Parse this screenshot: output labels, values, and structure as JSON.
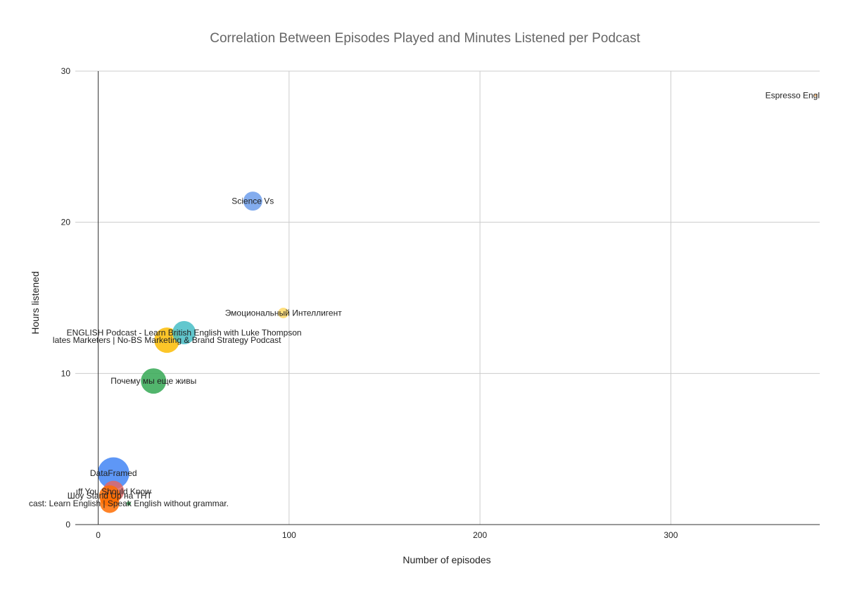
{
  "chart_data": {
    "type": "scatter",
    "title": "Correlation Between Episodes Played and Minutes Listened per Podcast",
    "xlabel": "Number of episodes",
    "ylabel": "Hours listened",
    "xlim": [
      -12,
      378
    ],
    "ylim": [
      0,
      30
    ],
    "x_ticks": [
      0,
      100,
      200,
      300
    ],
    "y_ticks": [
      0,
      10,
      20,
      30
    ],
    "x_tick_labels": [
      "0",
      "100",
      "200",
      "300"
    ],
    "y_tick_labels": [
      "0",
      "10",
      "20",
      "30"
    ],
    "grid": true,
    "legend": "none",
    "points": [
      {
        "label": "Espresso Engl",
        "x": 376,
        "y": 28.4,
        "size": 0.05,
        "color": "#f6b26b"
      },
      {
        "label": "Science Vs",
        "x": 81,
        "y": 21.4,
        "size": 0.45,
        "color": "#6d9eeb"
      },
      {
        "label": "Эмоциональный Интеллигент",
        "x": 97,
        "y": 14.0,
        "size": 0.25,
        "color": "#ffd966"
      },
      {
        "label": "ENGLISH Podcast - Learn British English with Luke Thompson",
        "x": 45,
        "y": 12.7,
        "size": 0.55,
        "color": "#46bdc6"
      },
      {
        "label": "lates Marketers | No-BS Marketing & Brand Strategy Podcast",
        "x": 36,
        "y": 12.2,
        "size": 0.6,
        "color": "#fbbc04"
      },
      {
        "label": "Почему мы еще живы",
        "x": 29,
        "y": 9.5,
        "size": 0.6,
        "color": "#34a853"
      },
      {
        "label": "DataFramed",
        "x": 8,
        "y": 3.4,
        "size": 0.75,
        "color": "#4285f4"
      },
      {
        "label": "ıff You Should Know",
        "x": 8,
        "y": 2.2,
        "size": 0.5,
        "color": "#e06666"
      },
      {
        "label": "Шоу Stand Up на ТНТ",
        "x": 6,
        "y": 1.9,
        "size": 0.5,
        "color": "#ff6d01"
      },
      {
        "label": "cast: Learn English | Speak English without grammar.",
        "x": 16,
        "y": 1.4,
        "size": 0.1,
        "color": "#34a853"
      },
      {
        "label": "",
        "x": 6,
        "y": 1.4,
        "size": 0.45,
        "color": "#ff6d01"
      }
    ]
  }
}
